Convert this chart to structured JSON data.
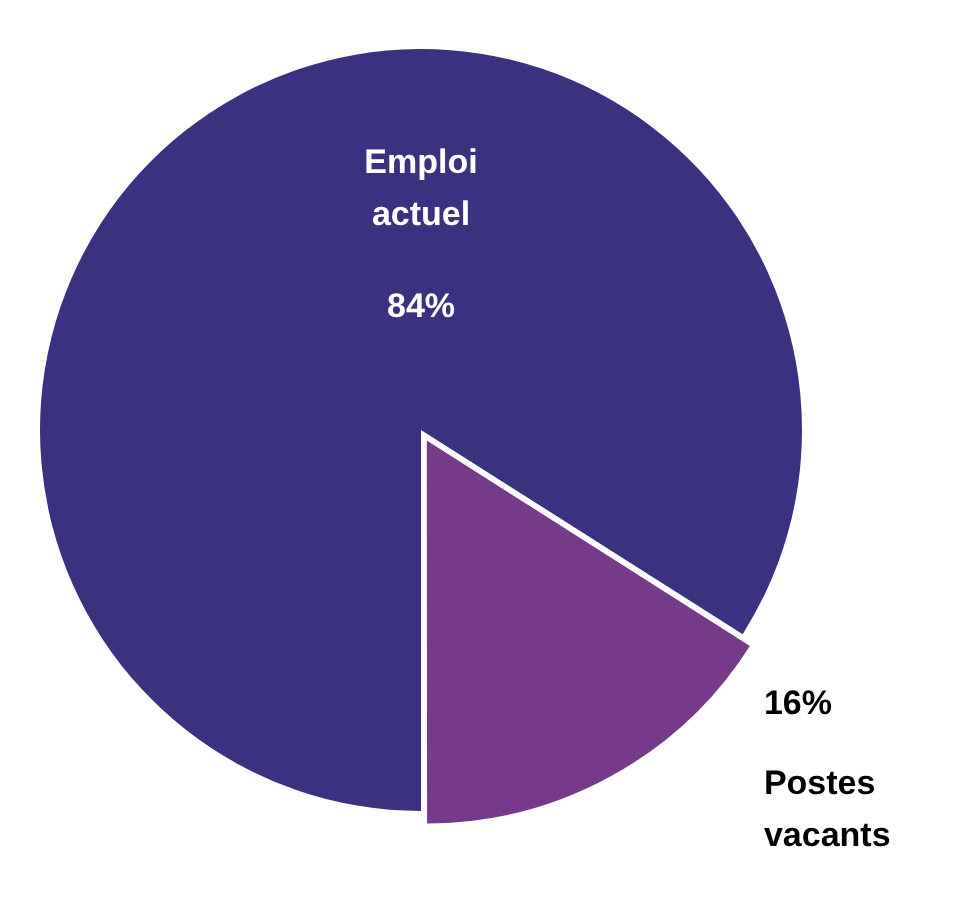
{
  "chart_data": {
    "type": "pie",
    "categories": [
      "Emploi actuel",
      "Postes vacants"
    ],
    "values": [
      84,
      16
    ],
    "colors": [
      "#3a3180",
      "#763a8a"
    ],
    "value_labels": [
      "84%",
      "16%"
    ],
    "legend": false
  }
}
